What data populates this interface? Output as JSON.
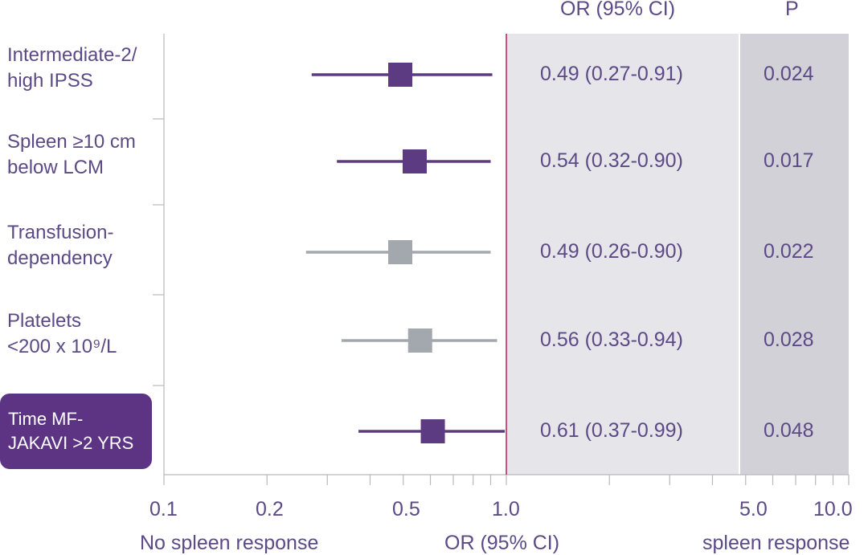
{
  "chart_data": {
    "type": "forest",
    "header": {
      "or_ci": "OR (95% CI)",
      "p": "P"
    },
    "x_axis": {
      "scale": "log",
      "range": [
        0.1,
        10.0
      ],
      "tick_labels": [
        {
          "value": 0.1,
          "label": "0.1"
        },
        {
          "value": 0.2,
          "label": "0.2"
        },
        {
          "value": 0.5,
          "label": "0.5"
        },
        {
          "value": 1.0,
          "label": "1.0"
        },
        {
          "value": 5.0,
          "label": "5.0"
        },
        {
          "value": 10.0,
          "label": "10.0"
        }
      ],
      "left_caption": "No spleen response",
      "center_caption": "OR (95% CI)",
      "right_caption": "spleen response"
    },
    "reference_line": 1.0,
    "rows": [
      {
        "label_lines": [
          "Intermediate-2/",
          "high IPSS"
        ],
        "or": 0.49,
        "ci_low": 0.27,
        "ci_high": 0.91,
        "or_ci_text": "0.49 (0.27-0.91)",
        "p_text": "0.024",
        "color": "#5d3b83",
        "highlight": false
      },
      {
        "label_lines": [
          "Spleen ≥10 cm",
          "below LCM"
        ],
        "or": 0.54,
        "ci_low": 0.32,
        "ci_high": 0.9,
        "or_ci_text": "0.54 (0.32-0.90)",
        "p_text": "0.017",
        "color": "#5d3b83",
        "highlight": false
      },
      {
        "label_lines": [
          "Transfusion-",
          "dependency"
        ],
        "or": 0.49,
        "ci_low": 0.26,
        "ci_high": 0.9,
        "or_ci_text": "0.49 (0.26-0.90)",
        "p_text": "0.022",
        "color": "#a3a7ae",
        "highlight": false
      },
      {
        "label_lines": [
          "Platelets",
          "<200 x 10⁹/L"
        ],
        "or": 0.56,
        "ci_low": 0.33,
        "ci_high": 0.94,
        "or_ci_text": "0.56 (0.33-0.94)",
        "p_text": "0.028",
        "color": "#a3a7ae",
        "highlight": false
      },
      {
        "label_lines": [
          "Time MF-",
          "JAKAVI >2 YRS"
        ],
        "or": 0.61,
        "ci_low": 0.37,
        "ci_high": 0.99,
        "or_ci_text": "0.61 (0.37-0.99)",
        "p_text": "0.048",
        "color": "#5d3b83",
        "highlight": true
      }
    ],
    "colors": {
      "text": "#5b4a86",
      "ref_line": "#c2185b",
      "or_panel": "#e6e5ea",
      "p_panel": "#d3d1d8",
      "highlight_bg": "#5d3384"
    }
  }
}
